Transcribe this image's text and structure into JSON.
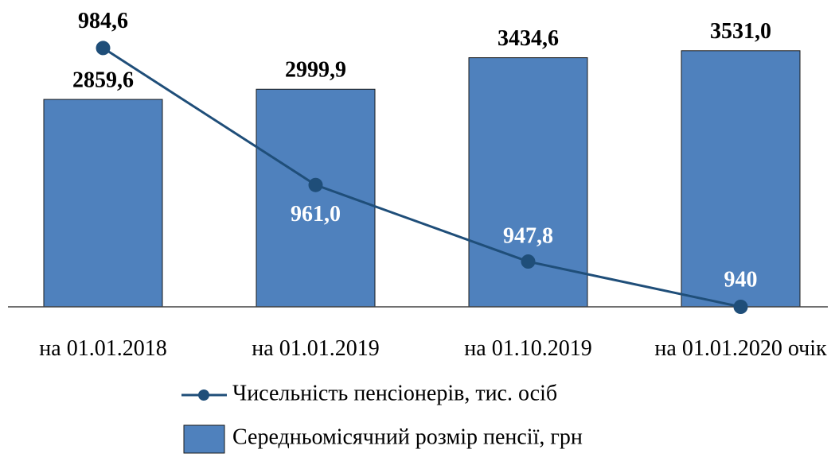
{
  "chart_data": {
    "type": "bar",
    "categories": [
      "на 01.01.2018",
      "на 01.01.2019",
      "на 01.10.2019",
      "на 01.01.2020 очік"
    ],
    "ylim": [
      0,
      4000
    ],
    "y2lim": [
      940,
      990
    ],
    "series": [
      {
        "name": "Середньомісячний розмір пенсії, грн",
        "type": "bar",
        "color": "#4f81bd",
        "values": [
          2859.6,
          2999.9,
          3434.6,
          3531.0
        ],
        "value_labels": [
          "2859,6",
          "2999,9",
          "3434,6",
          "3531,0"
        ]
      },
      {
        "name": "Чисельність пенсіонерів, тис. осіб",
        "type": "line",
        "axis": "y2",
        "color": "#1f4e79",
        "values": [
          984.6,
          961.0,
          947.8,
          940
        ],
        "value_labels": [
          "984,6",
          "961,0",
          "947,8",
          "940"
        ]
      }
    ]
  }
}
